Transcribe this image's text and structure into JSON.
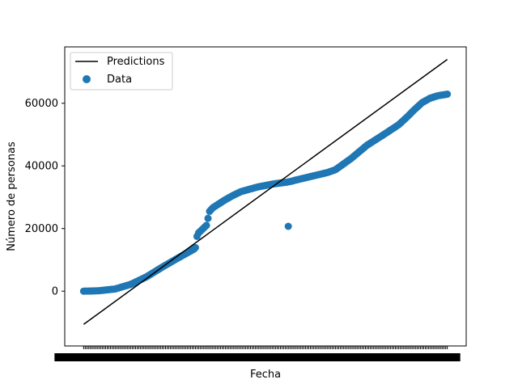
{
  "chart_data": {
    "type": "scatter",
    "title": "",
    "xlabel": "Fecha",
    "ylabel": "Número de personas",
    "x_tick_labels_illegible": true,
    "x_count": 232,
    "ylim": [
      -17500,
      78000
    ],
    "y_ticks": [
      0,
      20000,
      40000,
      60000
    ],
    "grid": false,
    "legend": {
      "placement": "top-left",
      "entries": [
        {
          "label": "Predictions",
          "kind": "line",
          "color": "#000000"
        },
        {
          "label": "Data",
          "kind": "marker",
          "color": "#1f77b4"
        }
      ]
    },
    "series": [
      {
        "name": "Data",
        "kind": "scatter",
        "color": "#1f77b4",
        "x": [
          0,
          5,
          10,
          20,
          30,
          40,
          50,
          60,
          70,
          71,
          72,
          73,
          78,
          80,
          82,
          85,
          90,
          95,
          100,
          110,
          120,
          129,
          130,
          132,
          135,
          140,
          150,
          155,
          160,
          170,
          180,
          190,
          200,
          205,
          210,
          215,
          220,
          225,
          231
        ],
        "y": [
          0,
          50,
          150,
          700,
          2200,
          4600,
          7700,
          10600,
          13400,
          13900,
          17500,
          18600,
          21000,
          25500,
          26600,
          27600,
          29200,
          30600,
          31800,
          33200,
          34200,
          34800,
          20700,
          35100,
          35500,
          36100,
          37300,
          37900,
          38800,
          42400,
          46600,
          49800,
          53100,
          55400,
          57900,
          60200,
          61600,
          62400,
          62900
        ]
      },
      {
        "name": "Predictions",
        "kind": "line",
        "color": "#000000",
        "x": [
          0,
          231
        ],
        "y": [
          -10600,
          74000
        ]
      }
    ]
  }
}
